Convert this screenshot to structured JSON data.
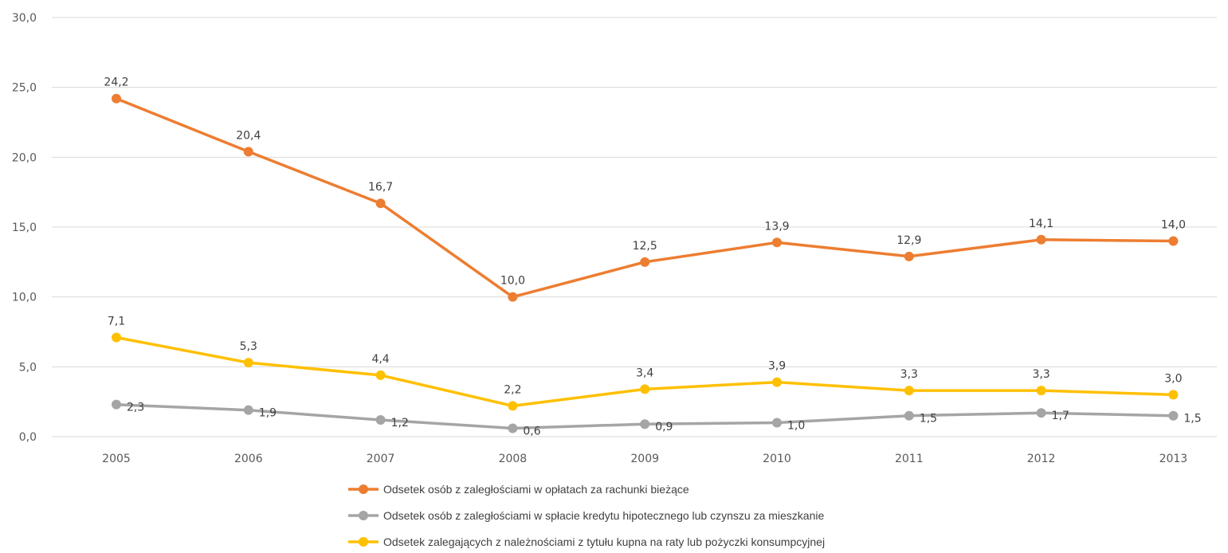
{
  "chart_data": {
    "type": "line",
    "title": "",
    "xlabel": "",
    "ylabel": "",
    "categories": [
      "2005",
      "2006",
      "2007",
      "2008",
      "2009",
      "2010",
      "2011",
      "2012",
      "2013"
    ],
    "ylim": [
      0,
      30
    ],
    "yticks": [
      0,
      5,
      10,
      15,
      20,
      25,
      30
    ],
    "ytick_labels": [
      "0,0",
      "5,0",
      "10,0",
      "15,0",
      "20,0",
      "25,0",
      "30,0"
    ],
    "grid": true,
    "legend_position": "bottom",
    "series": [
      {
        "name": "Odsetek osób z zaległościami w opłatach za rachunki bieżące",
        "color": "#ED7D31",
        "values": [
          24.2,
          20.4,
          16.7,
          10.0,
          12.5,
          13.9,
          12.9,
          14.1,
          14.0
        ],
        "labels": [
          "24,2",
          "20,4",
          "16,7",
          "10,0",
          "12,5",
          "13,9",
          "12,9",
          "14,1",
          "14,0"
        ],
        "label_position": "above"
      },
      {
        "name": "Odsetek osób z zaległościami w spłacie kredytu hipotecznego lub czynszu za mieszkanie",
        "color": "#A5A5A5",
        "values": [
          2.3,
          1.9,
          1.2,
          0.6,
          0.9,
          1.0,
          1.5,
          1.7,
          1.5
        ],
        "labels": [
          "2,3",
          "1,9",
          "1,2",
          "0,6",
          "0,9",
          "1,0",
          "1,5",
          "1,7",
          "1,5"
        ],
        "label_position": "right"
      },
      {
        "name": "Odsetek zalegających z należnościami z tytułu kupna na raty lub pożyczki konsumpcyjnej",
        "color": "#FFC000",
        "values": [
          7.1,
          5.3,
          4.4,
          2.2,
          3.4,
          3.9,
          3.3,
          3.3,
          3.0
        ],
        "labels": [
          "7,1",
          "5,3",
          "4,4",
          "2,2",
          "3,4",
          "3,9",
          "3,3",
          "3,3",
          "3,0"
        ],
        "label_position": "above"
      }
    ]
  }
}
